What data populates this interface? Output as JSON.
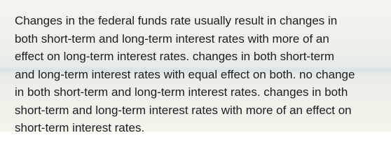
{
  "lines": [
    "Changes in the federal funds rate usually result in changes in",
    "both short-term and long-term interest rates with more of an",
    "effect on long-term interest rates. changes in both short-term",
    "and long-term interest rates with equal effect on both. no change",
    "in both short-term and long-term interest rates. changes in both",
    "short-term and long-term interest rates with more of an effect on",
    "short-term interest rates."
  ]
}
